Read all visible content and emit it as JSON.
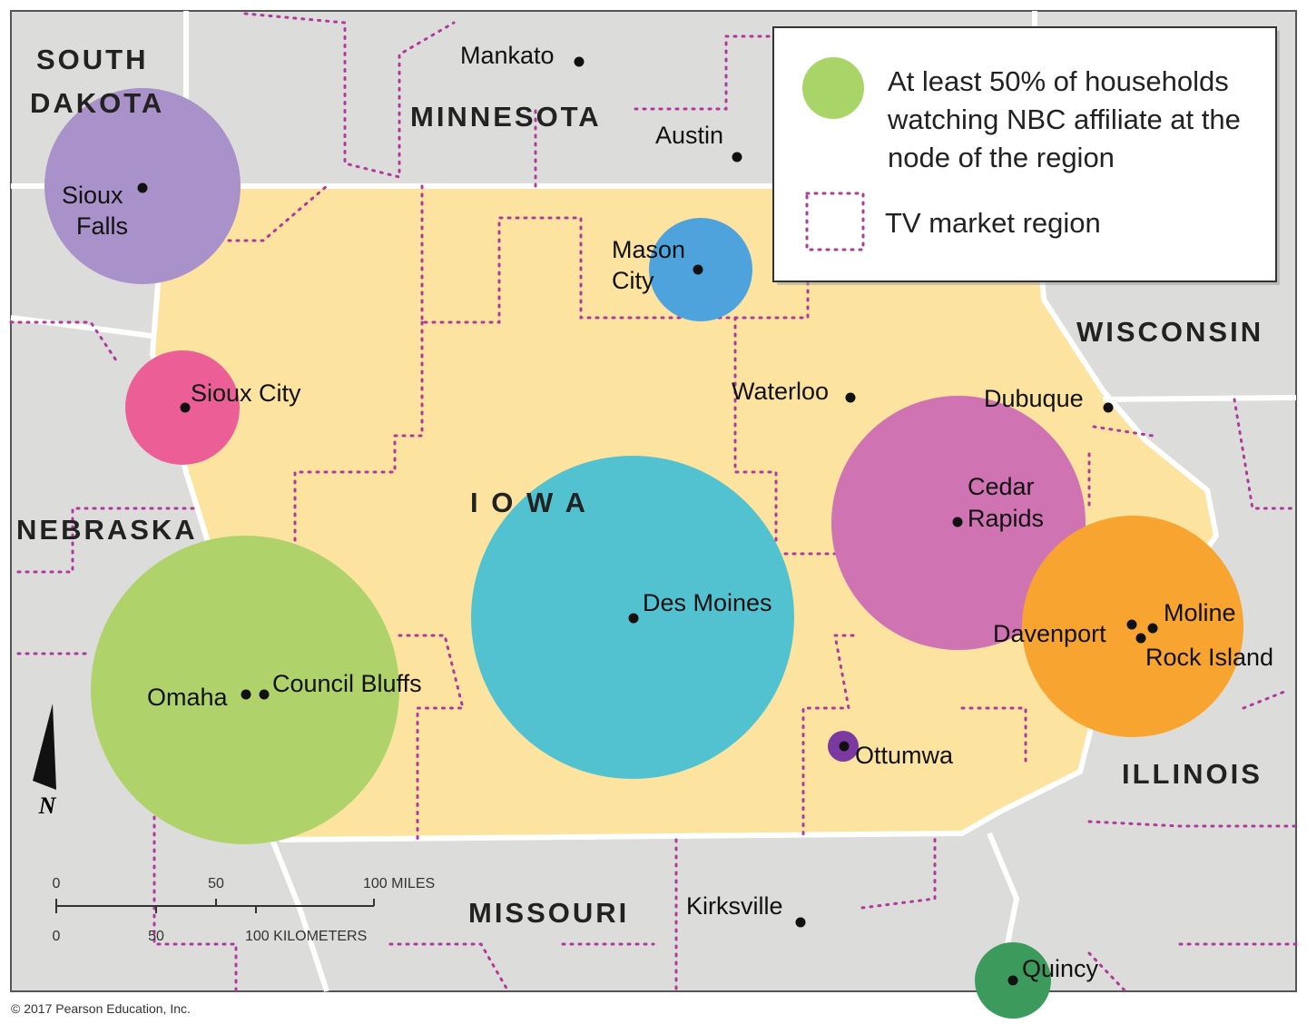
{
  "states": [
    [
      "SOUTH",
      "DAKOTA"
    ],
    [
      "MINNESOTA"
    ],
    [
      "WISCONSIN"
    ],
    [
      "NEBRASKA"
    ],
    [
      "I O W A"
    ],
    [
      "ILLINOIS"
    ],
    [
      "MISSOURI"
    ]
  ],
  "cities": [
    [
      "Mankato"
    ],
    [
      "Austin"
    ],
    [
      "Sioux",
      "Falls"
    ],
    [
      "Mason",
      "City"
    ],
    [
      "Sioux City"
    ],
    [
      "Waterloo"
    ],
    [
      "Dubuque"
    ],
    [
      "Cedar",
      "Rapids"
    ],
    [
      "Des Moines"
    ],
    [
      "Omaha"
    ],
    [
      "Council Bluffs"
    ],
    [
      "Davenport"
    ],
    [
      "Moline"
    ],
    [
      "Rock Island"
    ],
    [
      "Ottumwa"
    ],
    [
      "Kirksville"
    ],
    [
      "Quincy"
    ]
  ],
  "legend": {
    "circle": [
      "At least 50% of households",
      "watching NBC affiliate at the",
      "node of the region"
    ],
    "region": "TV market region"
  },
  "scale": {
    "miles": [
      "0",
      "50",
      "100 MILES"
    ],
    "km": [
      "0",
      "50",
      "100 KILOMETERS"
    ]
  },
  "north": "N",
  "copyright": "© 2017 Pearson Education, Inc."
}
